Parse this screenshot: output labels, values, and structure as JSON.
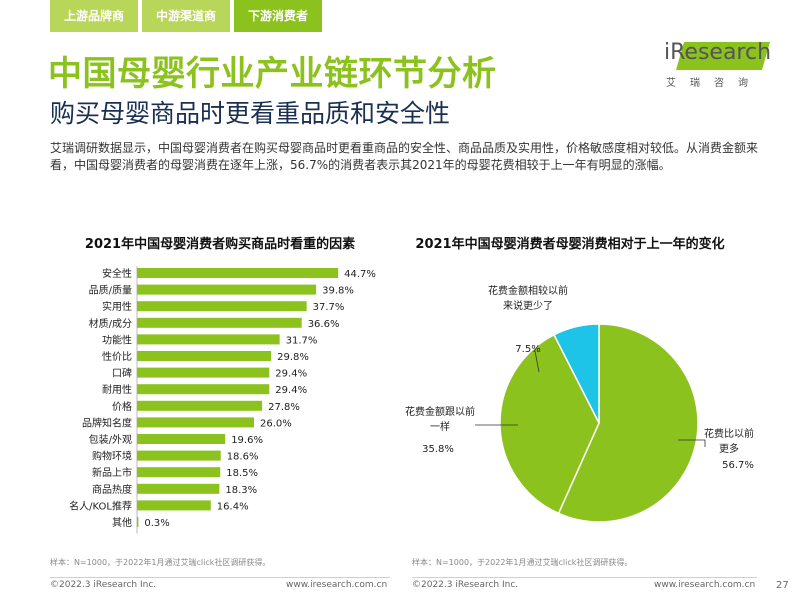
{
  "tabs": [
    {
      "label": "上游品牌商"
    },
    {
      "label": "中游渠道商"
    },
    {
      "label": "下游消费者"
    }
  ],
  "page": {
    "title": "中国母婴行业产业链环节分析",
    "subtitle": "购买母婴商品时更看重品质和安全性",
    "desc": "艾瑞调研数据显示，中国母婴消费者在购买母婴商品时更看重商品的安全性、商品品质及实用性，价格敏感度相对较低。从消费金额来看，中国母婴消费者的母婴消费在逐年上涨，56.7%的消费者表示其2021年的母婴花费相较于上一年有明显的涨幅。",
    "page_number": "27"
  },
  "logo": {
    "text": "iResearch",
    "sub": "艾瑞咨询"
  },
  "colors": {
    "accent": "#8cc21e",
    "bar": "#8cc21e",
    "pie_green": "#8cc21e",
    "pie_cyan": "#1ec3e8",
    "navy": "#1b2f52"
  },
  "footer": {
    "source_left": "样本：N=1000，于2022年1月通过艾瑞click社区调研获得。",
    "source_right": "样本：N=1000，于2022年1月通过艾瑞click社区调研获得。",
    "copyright": "©2022.3 iResearch Inc.",
    "url": "www.iresearch.com.cn"
  },
  "chart_data": [
    {
      "type": "bar",
      "orientation": "horizontal",
      "title": "2021年中国母婴消费者购买商品时看重的因素",
      "categories": [
        "安全性",
        "品质/质量",
        "实用性",
        "材质/成分",
        "功能性",
        "性价比",
        "口碑",
        "耐用性",
        "价格",
        "品牌知名度",
        "包装/外观",
        "购物环境",
        "新品上市",
        "商品热度",
        "名人/KOL推荐",
        "其他"
      ],
      "values": [
        44.7,
        39.8,
        37.7,
        36.6,
        31.7,
        29.8,
        29.4,
        29.4,
        27.8,
        26.0,
        19.6,
        18.6,
        18.5,
        18.3,
        16.4,
        0.3
      ],
      "value_labels": [
        "44.7%",
        "39.8%",
        "37.7%",
        "36.6%",
        "31.7%",
        "29.8%",
        "29.4%",
        "29.4%",
        "27.8%",
        "26.0%",
        "19.6%",
        "18.6%",
        "18.5%",
        "18.3%",
        "16.4%",
        "0.3%"
      ],
      "unit": "%"
    },
    {
      "type": "pie",
      "title": "2021年中国母婴消费者母婴消费相对于上一年的变化",
      "slices": [
        {
          "label": "花费比以前更多",
          "value": 56.7,
          "value_label": "56.7%"
        },
        {
          "label": "花费金额跟以前一样",
          "value": 35.8,
          "value_label": "35.8%"
        },
        {
          "label": "花费金额相较以前来说更少了",
          "value": 7.5,
          "value_label": "7.5%"
        }
      ]
    }
  ]
}
